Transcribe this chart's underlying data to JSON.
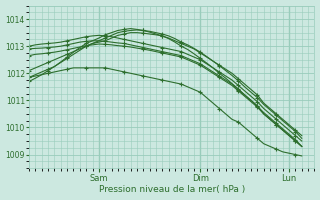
{
  "xlabel": "Pression niveau de la mer( hPa )",
  "bg_color": "#cce8e0",
  "grid_color": "#99ccbb",
  "line_color": "#2d6e2d",
  "ylim": [
    1008.5,
    1014.5
  ],
  "yticks": [
    1009,
    1010,
    1011,
    1012,
    1013,
    1014
  ],
  "xlim": [
    0,
    90
  ],
  "day_labels": [
    "Sam",
    "Dim",
    "Lun"
  ],
  "day_positions": [
    22,
    54,
    82
  ],
  "series": [
    {
      "x": [
        0,
        2,
        4,
        6,
        8,
        10,
        12,
        14,
        16,
        18,
        20,
        22,
        24,
        26,
        28,
        30,
        32,
        34,
        36,
        38,
        40,
        42,
        44,
        46,
        48,
        50,
        52,
        54,
        56,
        58,
        60,
        62,
        64,
        66,
        68,
        70,
        72,
        74,
        76,
        78,
        80,
        82,
        84,
        86
      ],
      "y": [
        1011.85,
        1011.9,
        1011.95,
        1012.0,
        1012.05,
        1012.1,
        1012.15,
        1012.2,
        1012.2,
        1012.2,
        1012.2,
        1012.2,
        1012.2,
        1012.15,
        1012.1,
        1012.05,
        1012.0,
        1011.95,
        1011.9,
        1011.85,
        1011.8,
        1011.75,
        1011.7,
        1011.65,
        1011.6,
        1011.5,
        1011.4,
        1011.3,
        1011.1,
        1010.9,
        1010.7,
        1010.5,
        1010.3,
        1010.2,
        1010.0,
        1009.8,
        1009.6,
        1009.4,
        1009.3,
        1009.2,
        1009.1,
        1009.05,
        1009.0,
        1008.95
      ]
    },
    {
      "x": [
        0,
        2,
        4,
        6,
        8,
        10,
        12,
        14,
        16,
        18,
        20,
        22,
        24,
        26,
        28,
        30,
        32,
        34,
        36,
        38,
        40,
        42,
        44,
        46,
        48,
        50,
        52,
        54,
        56,
        58,
        60,
        62,
        64,
        66,
        68,
        70,
        72,
        74,
        76,
        78,
        80,
        82,
        84,
        86
      ],
      "y": [
        1012.9,
        1012.92,
        1012.93,
        1012.95,
        1012.97,
        1013.0,
        1013.05,
        1013.1,
        1013.15,
        1013.18,
        1013.2,
        1013.2,
        1013.18,
        1013.15,
        1013.12,
        1013.1,
        1013.05,
        1013.0,
        1012.95,
        1012.9,
        1012.85,
        1012.8,
        1012.75,
        1012.7,
        1012.65,
        1012.55,
        1012.45,
        1012.35,
        1012.2,
        1012.05,
        1011.9,
        1011.75,
        1011.6,
        1011.4,
        1011.2,
        1011.0,
        1010.8,
        1010.5,
        1010.3,
        1010.1,
        1009.9,
        1009.7,
        1009.5,
        1009.3
      ]
    },
    {
      "x": [
        0,
        2,
        4,
        6,
        8,
        10,
        12,
        14,
        16,
        18,
        20,
        22,
        24,
        26,
        28,
        30,
        32,
        34,
        36,
        38,
        40,
        42,
        44,
        46,
        48,
        50,
        52,
        54,
        56,
        58,
        60,
        62,
        64,
        66,
        68,
        70,
        72,
        74,
        76,
        78,
        80,
        82,
        84,
        86
      ],
      "y": [
        1012.65,
        1012.7,
        1012.72,
        1012.75,
        1012.78,
        1012.82,
        1012.87,
        1012.92,
        1012.97,
        1013.02,
        1013.05,
        1013.08,
        1013.07,
        1013.05,
        1013.02,
        1013.0,
        1012.97,
        1012.93,
        1012.89,
        1012.85,
        1012.8,
        1012.75,
        1012.7,
        1012.65,
        1012.6,
        1012.5,
        1012.4,
        1012.3,
        1012.15,
        1012.0,
        1011.85,
        1011.7,
        1011.55,
        1011.35,
        1011.15,
        1010.95,
        1010.75,
        1010.5,
        1010.3,
        1010.1,
        1009.9,
        1009.7,
        1009.5,
        1009.3
      ]
    },
    {
      "x": [
        0,
        2,
        4,
        6,
        8,
        10,
        12,
        14,
        16,
        18,
        20,
        22,
        24,
        26,
        28,
        30,
        32,
        34,
        36,
        38,
        40,
        42,
        44,
        46,
        48,
        50,
        52,
        54,
        56,
        58,
        60,
        62,
        64,
        66,
        68,
        70,
        72,
        74,
        76,
        78,
        80,
        82,
        84,
        86
      ],
      "y": [
        1013.0,
        1013.05,
        1013.08,
        1013.1,
        1013.12,
        1013.15,
        1013.2,
        1013.25,
        1013.3,
        1013.35,
        1013.38,
        1013.4,
        1013.38,
        1013.35,
        1013.3,
        1013.25,
        1013.2,
        1013.15,
        1013.1,
        1013.05,
        1013.0,
        1012.95,
        1012.9,
        1012.85,
        1012.8,
        1012.7,
        1012.6,
        1012.5,
        1012.35,
        1012.2,
        1012.05,
        1011.9,
        1011.75,
        1011.55,
        1011.35,
        1011.15,
        1010.95,
        1010.7,
        1010.5,
        1010.3,
        1010.1,
        1009.9,
        1009.7,
        1009.5
      ]
    },
    {
      "x": [
        0,
        2,
        4,
        6,
        8,
        10,
        12,
        14,
        16,
        18,
        20,
        22,
        24,
        26,
        28,
        30,
        32,
        34,
        36,
        38,
        40,
        42,
        44,
        46,
        48,
        50,
        52,
        54,
        56,
        58,
        60,
        62,
        64,
        66,
        68,
        70,
        72,
        74,
        76,
        78,
        80,
        82,
        84,
        86
      ],
      "y": [
        1012.1,
        1012.2,
        1012.3,
        1012.4,
        1012.5,
        1012.6,
        1012.7,
        1012.8,
        1012.9,
        1013.0,
        1013.1,
        1013.15,
        1013.2,
        1013.3,
        1013.4,
        1013.45,
        1013.5,
        1013.5,
        1013.48,
        1013.45,
        1013.42,
        1013.38,
        1013.3,
        1013.2,
        1013.1,
        1013.0,
        1012.9,
        1012.75,
        1012.6,
        1012.45,
        1012.3,
        1012.15,
        1012.0,
        1011.8,
        1011.6,
        1011.4,
        1011.2,
        1010.9,
        1010.7,
        1010.5,
        1010.3,
        1010.1,
        1009.9,
        1009.7
      ]
    },
    {
      "x": [
        0,
        2,
        4,
        6,
        8,
        10,
        12,
        14,
        16,
        18,
        20,
        22,
        24,
        26,
        28,
        30,
        32,
        34,
        36,
        38,
        40,
        42,
        44,
        46,
        48,
        50,
        52,
        54,
        56,
        58,
        60,
        62,
        64,
        66,
        68,
        70,
        72,
        74,
        76,
        78,
        80,
        82,
        84,
        86
      ],
      "y": [
        1011.85,
        1011.95,
        1012.05,
        1012.15,
        1012.25,
        1012.4,
        1012.55,
        1012.7,
        1012.85,
        1013.0,
        1013.1,
        1013.2,
        1013.3,
        1013.4,
        1013.5,
        1013.55,
        1013.58,
        1013.6,
        1013.58,
        1013.55,
        1013.5,
        1013.45,
        1013.38,
        1013.28,
        1013.15,
        1013.05,
        1012.92,
        1012.78,
        1012.62,
        1012.45,
        1012.28,
        1012.1,
        1011.92,
        1011.72,
        1011.5,
        1011.3,
        1011.1,
        1010.85,
        1010.65,
        1010.45,
        1010.25,
        1010.05,
        1009.85,
        1009.6
      ]
    },
    {
      "x": [
        0,
        2,
        4,
        6,
        8,
        10,
        12,
        14,
        16,
        18,
        20,
        22,
        24,
        26,
        28,
        30,
        32,
        34,
        36,
        38,
        40,
        42,
        44,
        46,
        48,
        50,
        52,
        54,
        56,
        58,
        60,
        62,
        64,
        66,
        68,
        70,
        72,
        74,
        76,
        78,
        80,
        82,
        84,
        86
      ],
      "y": [
        1011.7,
        1011.82,
        1011.95,
        1012.1,
        1012.25,
        1012.42,
        1012.6,
        1012.78,
        1012.95,
        1013.1,
        1013.2,
        1013.3,
        1013.42,
        1013.5,
        1013.58,
        1013.62,
        1013.65,
        1013.62,
        1013.58,
        1013.52,
        1013.45,
        1013.38,
        1013.28,
        1013.15,
        1013.0,
        1012.88,
        1012.72,
        1012.55,
        1012.38,
        1012.2,
        1012.0,
        1011.82,
        1011.62,
        1011.42,
        1011.2,
        1011.0,
        1010.78,
        1010.55,
        1010.35,
        1010.15,
        1009.95,
        1009.75,
        1009.55,
        1009.3
      ]
    }
  ]
}
